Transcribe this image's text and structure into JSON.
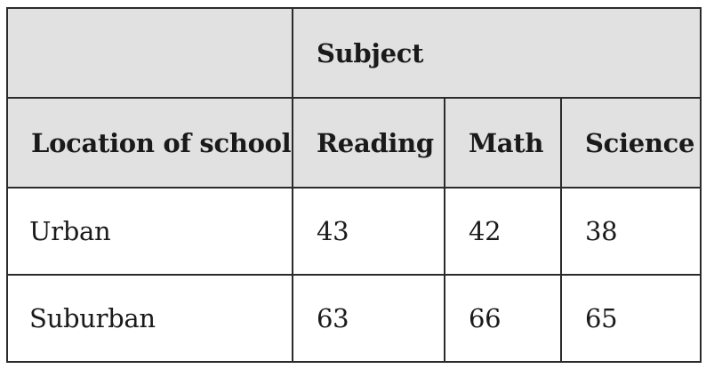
{
  "table": {
    "group_header": "Subject",
    "columns": [
      "Location of school",
      "Reading",
      "Math",
      "Science"
    ],
    "rows": [
      {
        "location": "Urban",
        "values": [
          "43",
          "42",
          "38"
        ]
      },
      {
        "location": "Suburban",
        "values": [
          "63",
          "66",
          "65"
        ]
      }
    ]
  }
}
